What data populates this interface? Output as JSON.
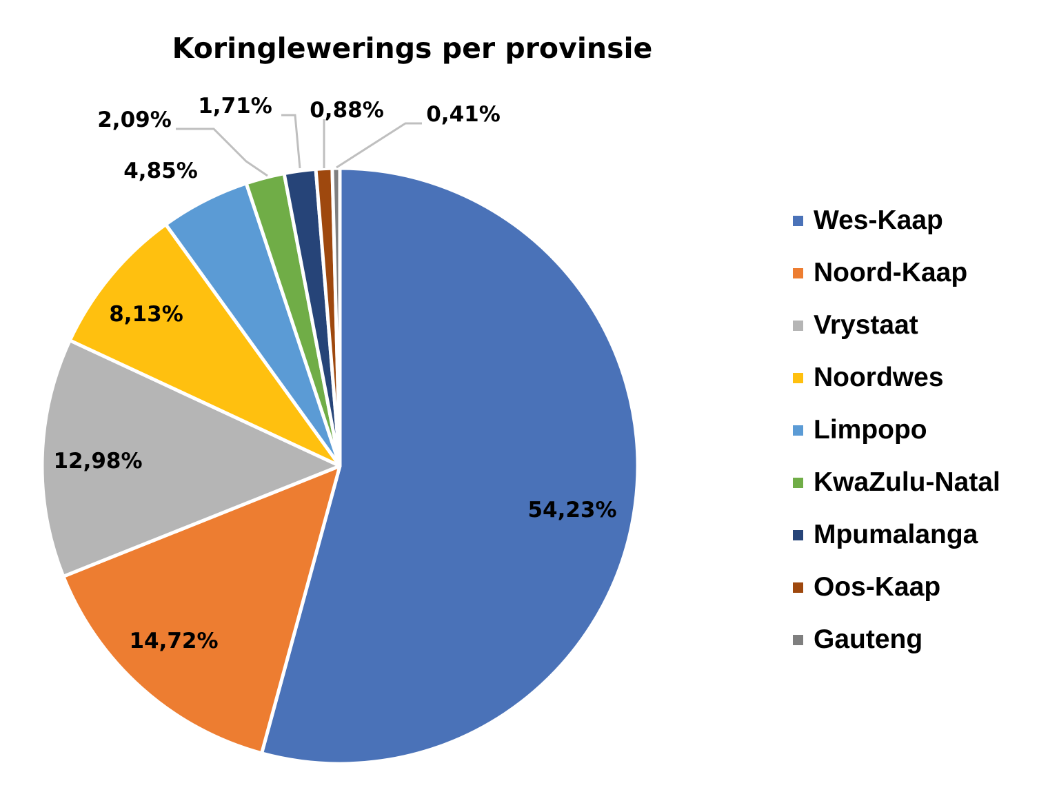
{
  "chart_data": {
    "type": "pie",
    "title": "Koringlewerings per provinsie",
    "legend_position": "right",
    "slices": [
      {
        "name": "Wes-Kaap",
        "value": 54.23,
        "label": "54,23%",
        "color": "#4A72B8"
      },
      {
        "name": "Noord-Kaap",
        "value": 14.72,
        "label": "14,72%",
        "color": "#ED7D31"
      },
      {
        "name": "Vrystaat",
        "value": 12.98,
        "label": "12,98%",
        "color": "#B5B5B5"
      },
      {
        "name": "Noordwes",
        "value": 8.13,
        "label": "8,13%",
        "color": "#FFC00F"
      },
      {
        "name": "Limpopo",
        "value": 4.85,
        "label": "4,85%",
        "color": "#5B9BD5"
      },
      {
        "name": "KwaZulu-Natal",
        "value": 2.09,
        "label": "2,09%",
        "color": "#70AD47"
      },
      {
        "name": "Mpumalanga",
        "value": 1.71,
        "label": "1,71%",
        "color": "#264478"
      },
      {
        "name": "Oos-Kaap",
        "value": 0.88,
        "label": "0,88%",
        "color": "#9E480E"
      },
      {
        "name": "Gauteng",
        "value": 0.41,
        "label": "0,41%",
        "color": "#7F7F7F"
      }
    ]
  }
}
